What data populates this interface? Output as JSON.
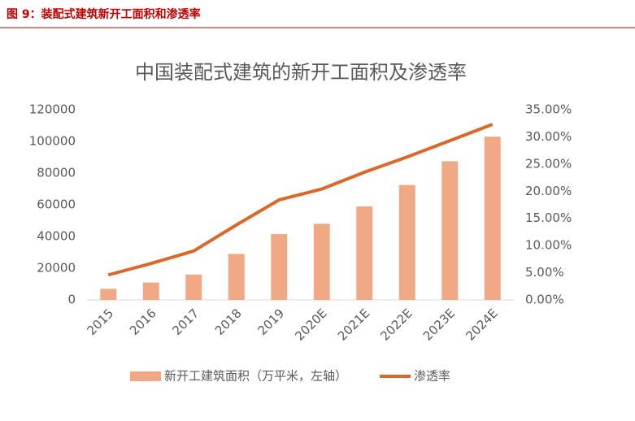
{
  "figure_caption": "图 9：装配式建筑新开工面积和渗透率",
  "chart_data": {
    "type": "bar-line",
    "title": "中国装配式建筑的新开工面积及渗透率",
    "categories": [
      "2015",
      "2016",
      "2017",
      "2018",
      "2019",
      "2020E",
      "2021E",
      "2022E",
      "2023E",
      "2024E"
    ],
    "series": [
      {
        "name": "新开工建筑面积（万平米，左轴）",
        "type": "bar",
        "color": "#f1a884",
        "values": [
          7000,
          11000,
          16000,
          29000,
          41500,
          48000,
          59000,
          72500,
          87500,
          103000
        ]
      },
      {
        "name": "渗透率",
        "type": "line",
        "axis": "y2",
        "color": "#d9692b",
        "values": [
          4.6,
          6.7,
          9.0,
          13.8,
          18.4,
          20.4,
          23.5,
          26.3,
          29.3,
          32.3
        ]
      }
    ],
    "ylim": [
      0,
      120000
    ],
    "yticks": [
      0,
      20000,
      40000,
      60000,
      80000,
      100000,
      120000
    ],
    "y2lim": [
      0,
      35
    ],
    "y2ticks": [
      {
        "value": 0,
        "label": "0.00%"
      },
      {
        "value": 5,
        "label": "5.00%"
      },
      {
        "value": 10,
        "label": "10.00%"
      },
      {
        "value": 15,
        "label": "15.00%"
      },
      {
        "value": 20,
        "label": "20.00%"
      },
      {
        "value": 25,
        "label": "25.00%"
      },
      {
        "value": 30,
        "label": "30.00%"
      },
      {
        "value": 35,
        "label": "35.00%"
      }
    ],
    "grid": false,
    "legend": "bottom"
  }
}
